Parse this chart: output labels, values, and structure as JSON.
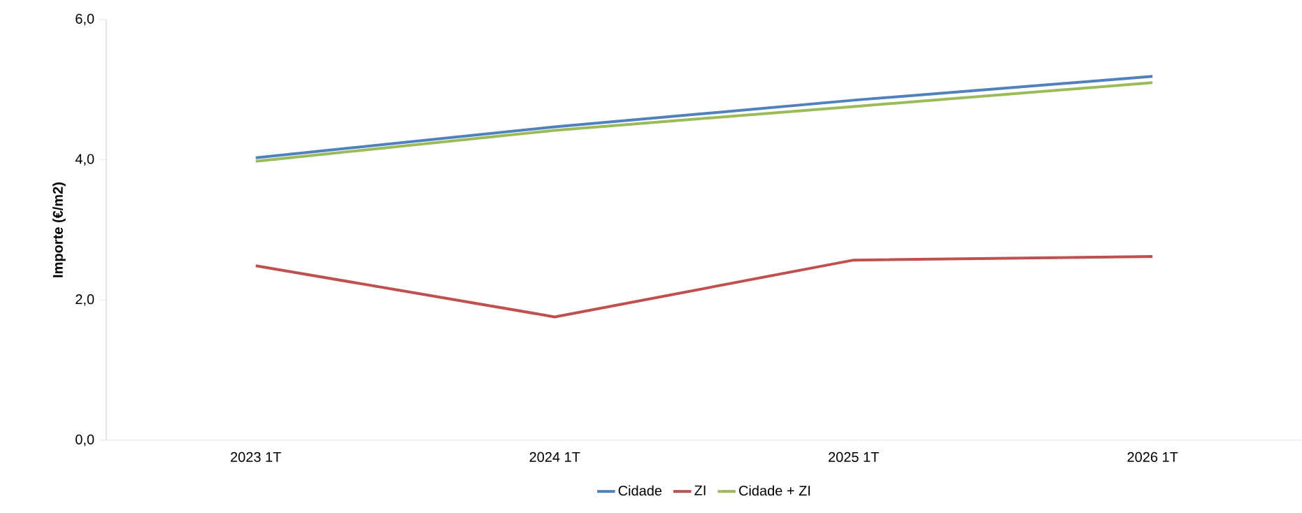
{
  "chart_data": {
    "type": "line",
    "ylabel": "Importe (€/m2)",
    "categories": [
      "2023 1T",
      "2024 1T",
      "2025 1T",
      "2026 1T"
    ],
    "series": [
      {
        "name": "Cidade",
        "color": "#4f81bd",
        "values": [
          4.03,
          4.47,
          4.85,
          5.19
        ]
      },
      {
        "name": "ZI",
        "color": "#c0504d",
        "values": [
          2.49,
          1.76,
          2.57,
          2.62
        ]
      },
      {
        "name": "Cidade + ZI",
        "color": "#9bbb59",
        "values": [
          3.98,
          4.42,
          4.76,
          5.1
        ]
      }
    ],
    "ylim": [
      0,
      6
    ],
    "yticks": [
      {
        "value": 0,
        "label": "0,0"
      },
      {
        "value": 2,
        "label": "2,0"
      },
      {
        "value": 4,
        "label": "4,0"
      },
      {
        "value": 6,
        "label": "6,0"
      }
    ],
    "grid": false,
    "legend": "bottom",
    "marker": "none",
    "line_style": "solid"
  }
}
